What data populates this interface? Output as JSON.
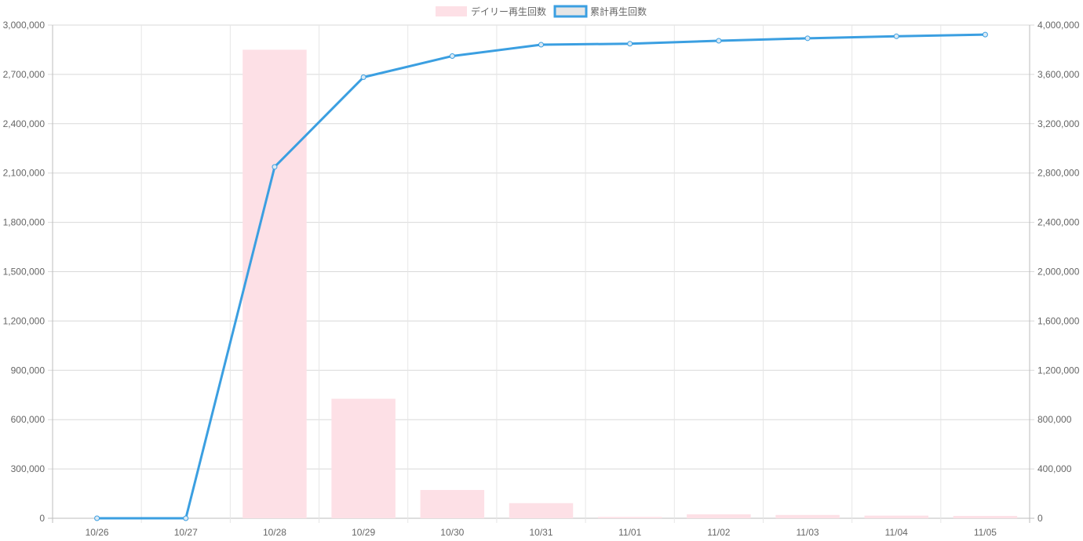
{
  "chart_data": {
    "type": "bar",
    "categories": [
      "10/26",
      "10/27",
      "10/28",
      "10/29",
      "10/30",
      "10/31",
      "11/01",
      "11/02",
      "11/03",
      "11/04",
      "11/05"
    ],
    "series": [
      {
        "name": "デイリー再生回数",
        "type": "bar",
        "axis": "left",
        "color": "#fde0e6",
        "values": [
          0,
          0,
          2850000,
          727000,
          172000,
          92000,
          8000,
          24000,
          20000,
          16000,
          14000
        ]
      },
      {
        "name": "累計再生回数",
        "type": "line",
        "axis": "right",
        "color": "#3b9fe1",
        "values": [
          0,
          0,
          2850000,
          3577000,
          3749000,
          3841000,
          3849000,
          3873000,
          3893000,
          3909000,
          3923000
        ]
      }
    ],
    "y_left": {
      "min": 0,
      "max": 3000000,
      "ticks": [
        0,
        300000,
        600000,
        900000,
        1200000,
        1500000,
        1800000,
        2100000,
        2400000,
        2700000,
        3000000
      ],
      "tick_labels": [
        "0",
        "300,000",
        "600,000",
        "900,000",
        "1,200,000",
        "1,500,000",
        "1,800,000",
        "2,100,000",
        "2,400,000",
        "2,700,000",
        "3,000,000"
      ]
    },
    "y_right": {
      "min": 0,
      "max": 4000000,
      "ticks": [
        0,
        400000,
        800000,
        1200000,
        1600000,
        2000000,
        2400000,
        2800000,
        3200000,
        3600000,
        4000000
      ],
      "tick_labels": [
        "0",
        "400,000",
        "800,000",
        "1,200,000",
        "1,600,000",
        "2,000,000",
        "2,400,000",
        "2,800,000",
        "3,200,000",
        "3,600,000",
        "4,000,000"
      ]
    },
    "grid": true,
    "legend": "top-center"
  }
}
